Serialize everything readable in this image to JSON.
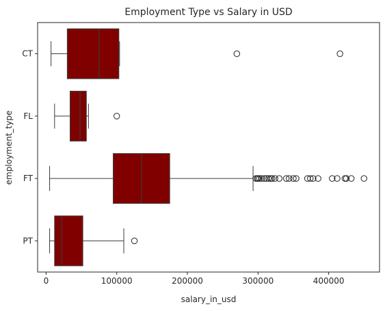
{
  "chart_data": {
    "type": "box",
    "orientation": "horizontal",
    "title": "Employment Type vs Salary in USD",
    "xlabel": "salary_in_usd",
    "ylabel": "employment_type",
    "xlim": [
      -12000,
      472000
    ],
    "xticks": [
      0,
      100000,
      200000,
      300000,
      400000
    ],
    "xtick_labels": [
      "0",
      "100000",
      "200000",
      "300000",
      "400000"
    ],
    "categories": [
      "CT",
      "FL",
      "FT",
      "PT"
    ],
    "box_color": "#800000",
    "edge_color": "#3a3a3a",
    "grid": false,
    "boxes": [
      {
        "category": "CT",
        "whisker_low": 7000,
        "q1": 30000,
        "median": 75000,
        "q3": 103000,
        "whisker_high": 104000,
        "outliers": [
          270000,
          416000
        ]
      },
      {
        "category": "FL",
        "whisker_low": 12000,
        "q1": 34000,
        "median": 48000,
        "q3": 57000,
        "whisker_high": 60000,
        "outliers": [
          100000
        ]
      },
      {
        "category": "FT",
        "whisker_low": 5000,
        "q1": 95000,
        "median": 135000,
        "q3": 175000,
        "whisker_high": 293000,
        "outliers": [
          297000,
          299000,
          300000,
          302000,
          305000,
          309000,
          312000,
          315000,
          318000,
          320000,
          324000,
          330000,
          340000,
          344000,
          350000,
          354000,
          370000,
          374000,
          378000,
          385000,
          405000,
          412000,
          423000,
          425000,
          432000,
          450000
        ]
      },
      {
        "category": "PT",
        "whisker_low": 5000,
        "q1": 12000,
        "median": 22000,
        "q3": 52000,
        "whisker_high": 110000,
        "outliers": [
          125000
        ]
      }
    ]
  }
}
